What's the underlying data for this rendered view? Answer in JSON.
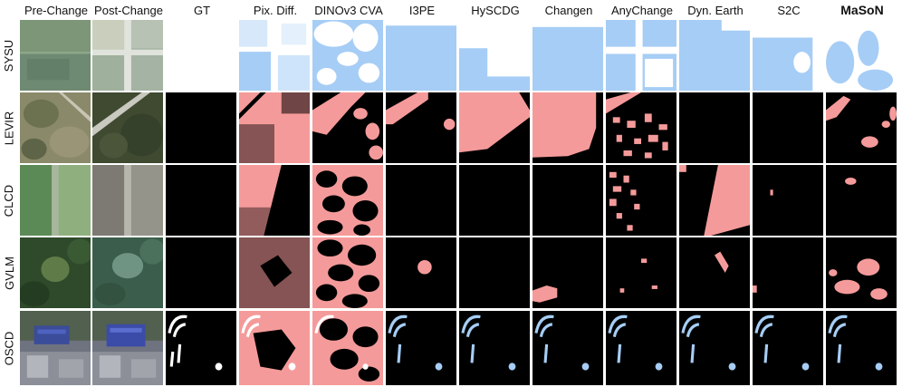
{
  "headers": [
    "Pre-Change",
    "Post-Change",
    "GT",
    "Pix. Diff.",
    "DINOv3 CVA",
    "I3PE",
    "HySCDG",
    "Changen",
    "AnyChange",
    "Dyn. Earth",
    "S2C",
    "MaSoN"
  ],
  "bold_header": "MaSoN",
  "rows": [
    "SYSU",
    "LEVIR",
    "CLCD",
    "GVLM",
    "OSCD"
  ],
  "colors": {
    "change_blue": "#a6cdf5",
    "change_pink": "#f59a9a",
    "background_black": "#000000",
    "background_white": "#ffffff",
    "gt_white": "#ffffff"
  }
}
